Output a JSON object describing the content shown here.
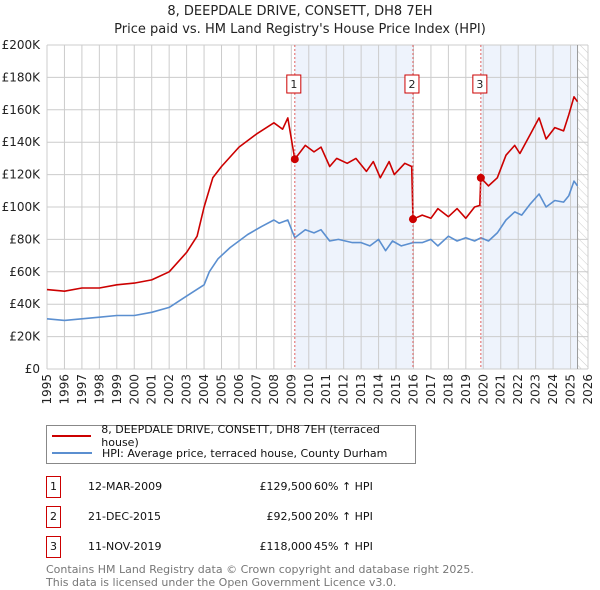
{
  "chart_data": {
    "type": "line",
    "title": "8, DEEPDALE DRIVE, CONSETT, DH8 7EH",
    "subtitle": "Price paid vs. HM Land Registry's House Price Index (HPI)",
    "xlim": [
      1995,
      2026
    ],
    "ylim": [
      0,
      200000
    ],
    "x_ticks": [
      "1995",
      "1996",
      "1997",
      "1998",
      "1999",
      "2000",
      "2001",
      "2002",
      "2003",
      "2004",
      "2005",
      "2006",
      "2007",
      "2008",
      "2009",
      "2010",
      "2011",
      "2012",
      "2013",
      "2014",
      "2015",
      "2016",
      "2017",
      "2018",
      "2019",
      "2020",
      "2021",
      "2022",
      "2023",
      "2024",
      "2025",
      "2026"
    ],
    "y_ticks": [
      "£0",
      "£20K",
      "£40K",
      "£60K",
      "£80K",
      "£100K",
      "£120K",
      "£140K",
      "£160K",
      "£180K",
      "£200K"
    ],
    "grid": true,
    "data_end": 2025.4,
    "shaded_ranges": [
      [
        2009.2,
        2015.97
      ],
      [
        2019.86,
        2025.4
      ]
    ],
    "series": [
      {
        "name": "8, DEEPDALE DRIVE, CONSETT, DH8 7EH (terraced house)",
        "color": "#cc0000",
        "x": [
          1995,
          1996,
          1997,
          1998,
          1999,
          2000,
          2001,
          2002,
          2003,
          2003.6,
          2004,
          2004.5,
          2005,
          2006,
          2007,
          2008,
          2008.5,
          2008.8,
          2009.2,
          2009.8,
          2010.3,
          2010.7,
          2011.2,
          2011.6,
          2012.2,
          2012.7,
          2013.3,
          2013.7,
          2014.1,
          2014.6,
          2014.9,
          2015.5,
          2015.9,
          2015.97,
          2016.5,
          2017,
          2017.4,
          2018,
          2018.5,
          2019,
          2019.5,
          2019.8,
          2019.86,
          2020.3,
          2020.8,
          2021.3,
          2021.8,
          2022.1,
          2022.7,
          2023.2,
          2023.6,
          2024.1,
          2024.6,
          2024.9,
          2025.2,
          2025.4
        ],
        "y": [
          49000,
          48000,
          50000,
          50000,
          52000,
          53000,
          55000,
          60000,
          72000,
          82000,
          100000,
          118000,
          125000,
          137000,
          145000,
          152000,
          148000,
          155000,
          129500,
          138000,
          134000,
          137000,
          125000,
          130000,
          127000,
          130000,
          122000,
          128000,
          118000,
          128000,
          120000,
          127000,
          125000,
          92500,
          95000,
          93000,
          99000,
          94000,
          99000,
          93000,
          100000,
          101000,
          118000,
          113000,
          118000,
          132000,
          138000,
          133000,
          145000,
          155000,
          142000,
          149000,
          147000,
          157000,
          168000,
          165000
        ]
      },
      {
        "name": "HPI: Average price, terraced house, County Durham",
        "color": "#5b8fd0",
        "x": [
          1995,
          1996,
          1997,
          1998,
          1999,
          2000,
          2001,
          2002,
          2003,
          2004,
          2004.3,
          2004.8,
          2005.5,
          2006.5,
          2007.3,
          2008,
          2008.3,
          2008.8,
          2009.2,
          2009.8,
          2010.3,
          2010.7,
          2011.2,
          2011.7,
          2012.5,
          2013,
          2013.5,
          2014,
          2014.4,
          2014.8,
          2015.3,
          2015.97,
          2016.5,
          2017,
          2017.4,
          2018,
          2018.5,
          2019,
          2019.5,
          2019.86,
          2020.3,
          2020.8,
          2021.3,
          2021.8,
          2022.2,
          2022.7,
          2023.2,
          2023.6,
          2024.1,
          2024.6,
          2024.9,
          2025.2,
          2025.4
        ],
        "y": [
          31000,
          30000,
          31000,
          32000,
          33000,
          33000,
          35000,
          38000,
          45000,
          52000,
          60000,
          68000,
          75000,
          83000,
          88000,
          92000,
          90000,
          92000,
          81000,
          86000,
          84000,
          86000,
          79000,
          80000,
          78000,
          78000,
          76000,
          80000,
          73000,
          79000,
          76000,
          78000,
          78000,
          80000,
          76000,
          82000,
          79000,
          81000,
          79000,
          81000,
          79000,
          84000,
          92000,
          97000,
          95000,
          102000,
          108000,
          100000,
          104000,
          103000,
          107000,
          116000,
          113000
        ]
      }
    ],
    "sales": [
      {
        "label": "1",
        "x": 2009.2,
        "y": 129500
      },
      {
        "label": "2",
        "x": 2015.97,
        "y": 92500
      },
      {
        "label": "3",
        "x": 2019.86,
        "y": 118000
      }
    ]
  },
  "legend": {
    "property": "8, DEEPDALE DRIVE, CONSETT, DH8 7EH (terraced house)",
    "hpi": "HPI: Average price, terraced house, County Durham"
  },
  "transactions": [
    {
      "num": "1",
      "date": "12-MAR-2009",
      "price": "£129,500",
      "pct": "60% ↑ HPI"
    },
    {
      "num": "2",
      "date": "21-DEC-2015",
      "price": "£92,500",
      "pct": "20% ↑ HPI"
    },
    {
      "num": "3",
      "date": "11-NOV-2019",
      "price": "£118,000",
      "pct": "45% ↑ HPI"
    }
  ],
  "footer": {
    "line1": "Contains HM Land Registry data © Crown copyright and database right 2025.",
    "line2": "This data is licensed under the Open Government Licence v3.0."
  }
}
